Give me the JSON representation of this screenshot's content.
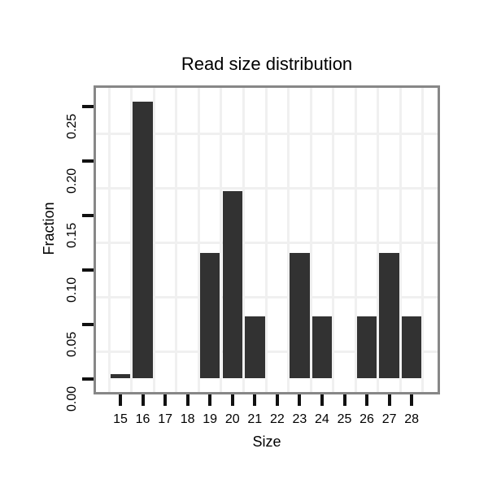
{
  "chart_data": {
    "type": "bar",
    "title": "Read size distribution",
    "xlabel": "Size",
    "ylabel": "Fraction",
    "categories": [
      "15",
      "16",
      "17",
      "18",
      "19",
      "20",
      "21",
      "22",
      "23",
      "24",
      "25",
      "26",
      "27",
      "28"
    ],
    "values": [
      0.004,
      0.254,
      0,
      0,
      0.115,
      0.172,
      0.057,
      0,
      0.115,
      0.057,
      0,
      0.057,
      0.115,
      0.057
    ],
    "y_ticks": [
      "0.00",
      "0.05",
      "0.10",
      "0.15",
      "0.20",
      "0.25"
    ],
    "y_tick_values": [
      0,
      0.05,
      0.1,
      0.15,
      0.2,
      0.25
    ],
    "ylim": [
      -0.014,
      0.268
    ],
    "grid": "minor-only, very light gray, horizontal at 0.025 steps between ticks, vertical at category boundaries",
    "legend": "none",
    "colors": {
      "bar": "#323232",
      "grid": "#f0f0f0",
      "panel_border": "#878787",
      "tick": "#111111",
      "text": "#000000",
      "background": "#ffffff"
    }
  }
}
